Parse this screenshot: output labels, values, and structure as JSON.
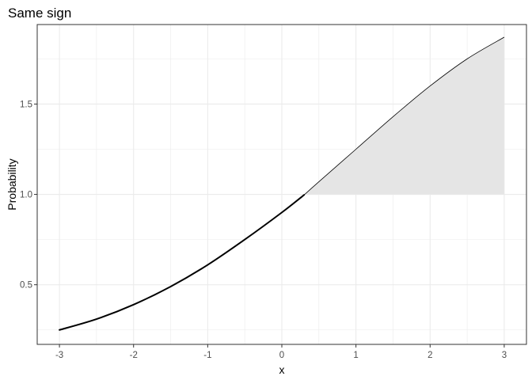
{
  "chart_data": {
    "type": "line",
    "title": "Same sign",
    "xlabel": "x",
    "ylabel": "Probability",
    "xlim": [
      -3.3,
      3.3
    ],
    "ylim": [
      0.17,
      1.94
    ],
    "x_ticks": [
      -3,
      -2,
      -1,
      0,
      1,
      2,
      3
    ],
    "x_tick_labels": [
      "-3",
      "-2",
      "-1",
      "0",
      "1",
      "2",
      "3"
    ],
    "y_ticks": [
      0.5,
      1.0,
      1.5
    ],
    "y_tick_labels": [
      "0.5",
      "1.0",
      "1.5"
    ],
    "grid": true,
    "series": [
      {
        "style": "curve",
        "x": [
          -3.0,
          -2.5,
          -2.0,
          -1.5,
          -1.0,
          -0.5,
          0.0,
          0.3,
          0.5,
          1.0,
          1.5,
          2.0,
          2.5,
          3.0
        ],
        "y": [
          0.25,
          0.31,
          0.39,
          0.49,
          0.61,
          0.75,
          0.9,
          0.997,
          1.07,
          1.25,
          1.43,
          1.6,
          1.75,
          1.87
        ],
        "thick_until_x": 0.3
      }
    ],
    "shaded_region": {
      "x_from": 0.3,
      "x_to": 3.0,
      "y_base": 1.0,
      "color": "#e5e5e5"
    },
    "colors": {
      "line": "#000000",
      "shade": "#e5e5e5",
      "grid": "#ebebeb",
      "panel_border": "#333333"
    }
  }
}
